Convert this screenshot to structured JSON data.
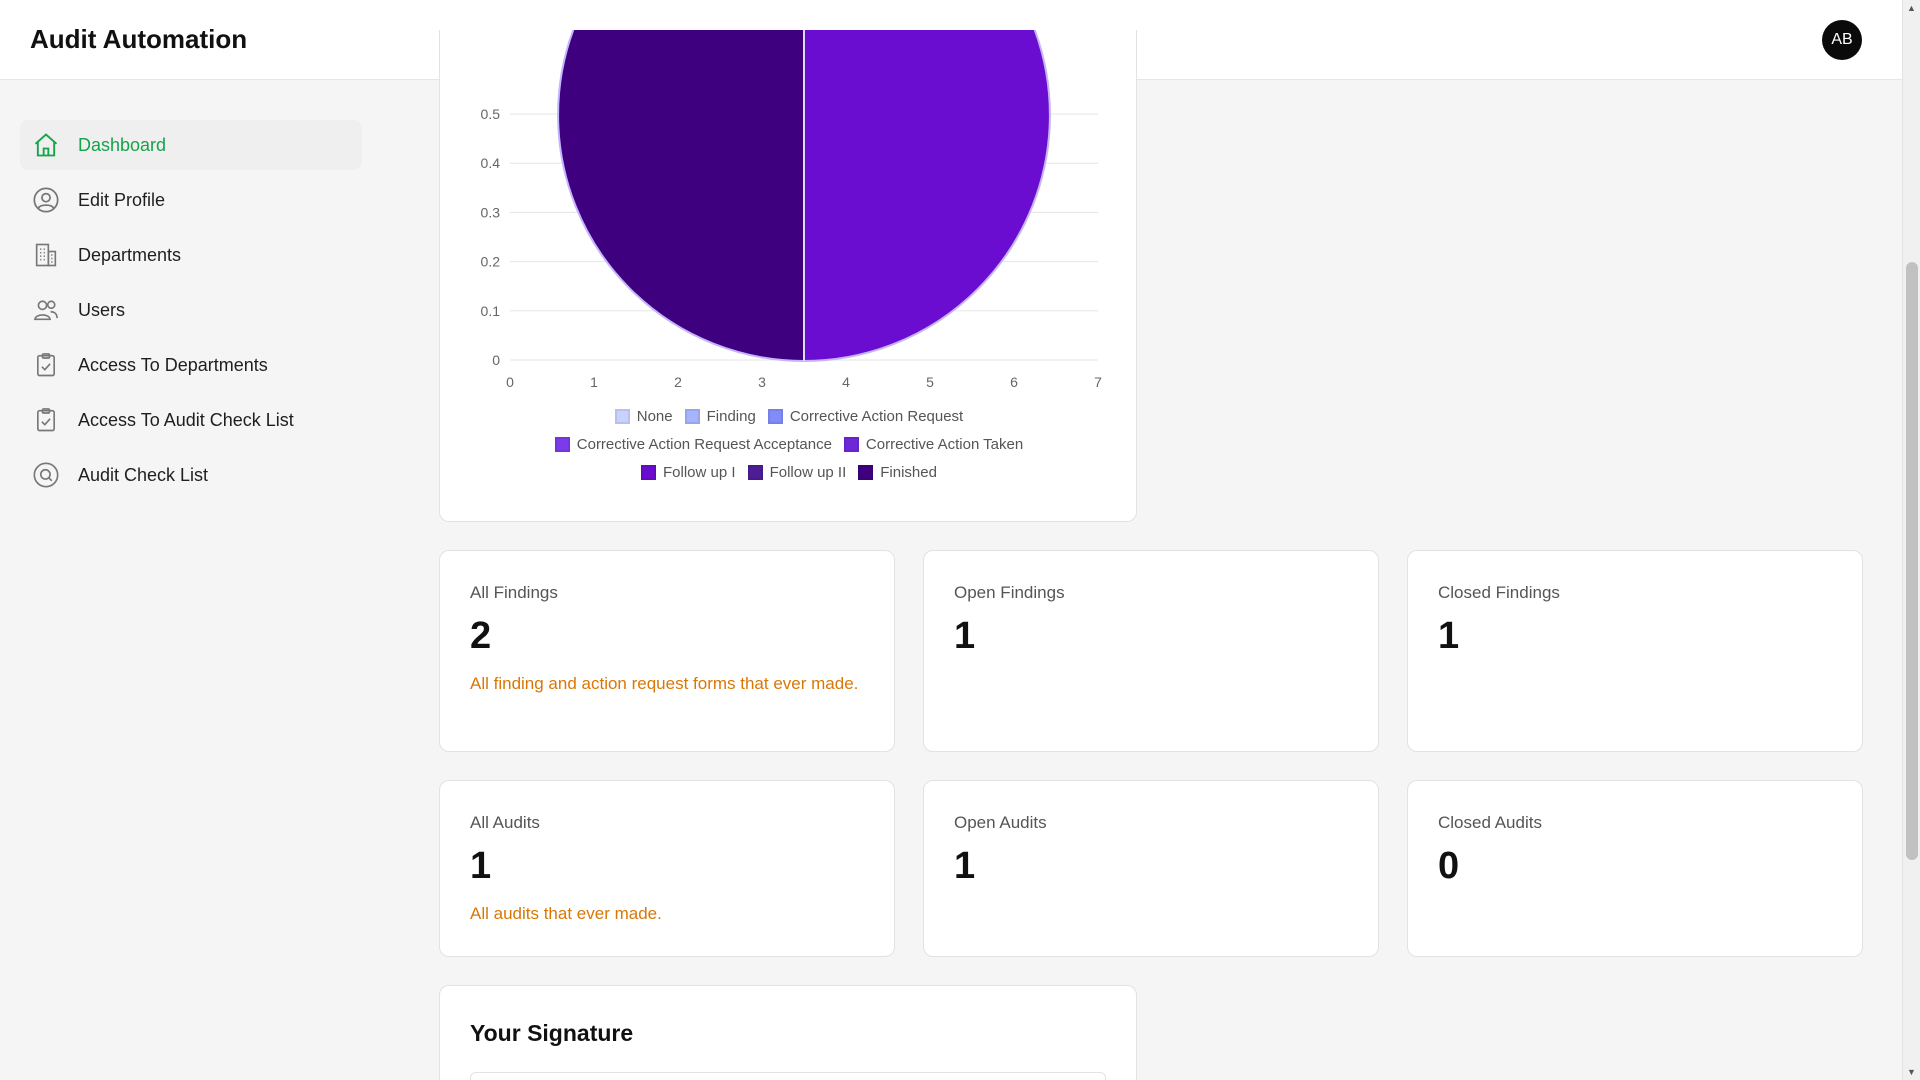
{
  "app": {
    "title": "Audit Automation",
    "avatar_initials": "AB"
  },
  "sidebar": {
    "items": [
      {
        "label": "Dashboard",
        "icon": "home-icon",
        "active": true
      },
      {
        "label": "Edit Profile",
        "icon": "user-circle-icon"
      },
      {
        "label": "Departments",
        "icon": "building-icon"
      },
      {
        "label": "Users",
        "icon": "users-icon"
      },
      {
        "label": "Access To Departments",
        "icon": "clipboard-check-icon"
      },
      {
        "label": "Access To Audit Check List",
        "icon": "clipboard-check-icon"
      },
      {
        "label": "Audit Check List",
        "icon": "search-circle-icon"
      }
    ]
  },
  "chart_data": {
    "type": "pie",
    "title": "",
    "xlabel": "",
    "ylabel": "",
    "x_ticks": [
      "0",
      "1",
      "2",
      "3",
      "4",
      "5",
      "6",
      "7"
    ],
    "y_ticks": [
      "0",
      "0.1",
      "0.2",
      "0.3",
      "0.4",
      "0.5"
    ],
    "ylim": [
      0,
      0.5
    ],
    "xlim": [
      0,
      7
    ],
    "grid": true,
    "legend_position": "bottom",
    "series": [
      {
        "name": "None",
        "value": 0,
        "color": "#c7d2fe"
      },
      {
        "name": "Finding",
        "value": 0,
        "color": "#a5b4fc"
      },
      {
        "name": "Corrective Action Request",
        "value": 0,
        "color": "#818cf8"
      },
      {
        "name": "Corrective Action Request Acceptance",
        "value": 0,
        "color": "#7c3aed"
      },
      {
        "name": "Corrective Action Taken",
        "value": 0,
        "color": "#6d28d9"
      },
      {
        "name": "Follow up I",
        "value": 1,
        "color": "#6a0dd1"
      },
      {
        "name": "Follow up II",
        "value": 0,
        "color": "#4c1d95"
      },
      {
        "name": "Finished",
        "value": 1,
        "color": "#3f0080"
      }
    ]
  },
  "stats": {
    "all_findings": {
      "label": "All Findings",
      "value": "2",
      "desc": "All finding and action request forms that ever made."
    },
    "open_findings": {
      "label": "Open Findings",
      "value": "1"
    },
    "closed_findings": {
      "label": "Closed Findings",
      "value": "1"
    },
    "all_audits": {
      "label": "All Audits",
      "value": "1",
      "desc": "All audits that ever made."
    },
    "open_audits": {
      "label": "Open Audits",
      "value": "1"
    },
    "closed_audits": {
      "label": "Closed Audits",
      "value": "0"
    }
  },
  "signature": {
    "title": "Your Signature"
  },
  "colors": {
    "accent_green": "#16a34a",
    "desc_orange": "#d97706"
  }
}
